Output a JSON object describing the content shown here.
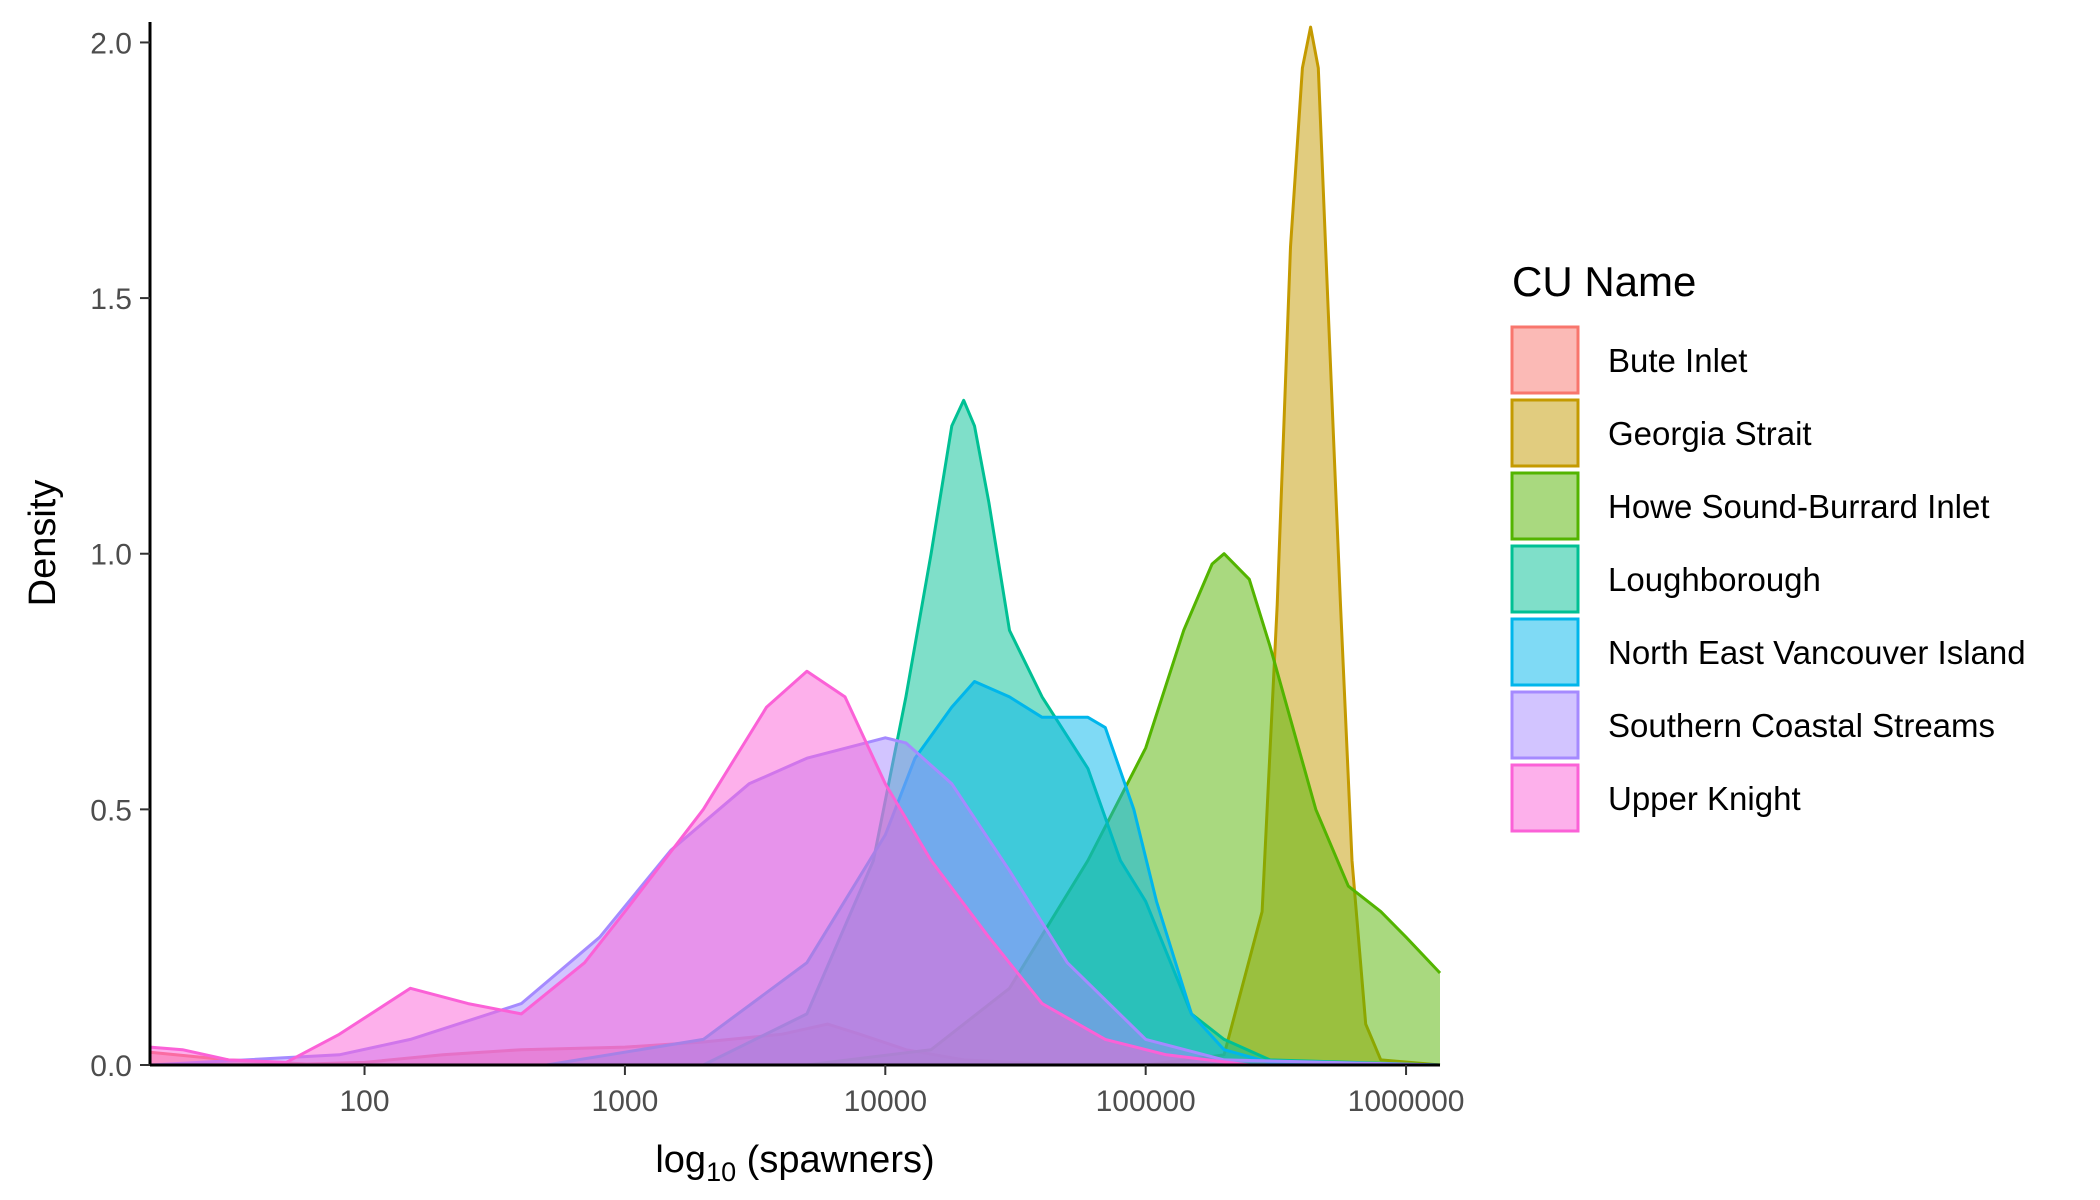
{
  "chart_data": {
    "type": "area",
    "xlabel_main": "log",
    "xlabel_sub": "10",
    "xlabel_rest": " (spawners)",
    "ylabel": "Density",
    "x_scale": "log10",
    "xlim": [
      15,
      1350000
    ],
    "ylim": [
      0,
      2.04
    ],
    "x_ticks": [
      100,
      1000,
      10000,
      100000,
      1000000
    ],
    "x_tick_labels": [
      "100",
      "1000",
      "10000",
      "100000",
      "1000000"
    ],
    "y_ticks": [
      0,
      0.5,
      1,
      1.5,
      2
    ],
    "y_tick_labels": [
      "0.0",
      "0.5",
      "1.0",
      "1.5",
      "2.0"
    ],
    "grid": false,
    "legend": {
      "title": "CU Name",
      "position": "right"
    },
    "fill_opacity": 0.5,
    "series": [
      {
        "name": "Bute Inlet",
        "color": "#F8766D",
        "points": [
          [
            15,
            0.025
          ],
          [
            30,
            0.01
          ],
          [
            60,
            0.002
          ],
          [
            100,
            0.005
          ],
          [
            200,
            0.02
          ],
          [
            400,
            0.03
          ],
          [
            1000,
            0.035
          ],
          [
            2000,
            0.045
          ],
          [
            4000,
            0.06
          ],
          [
            6000,
            0.08
          ],
          [
            8000,
            0.06
          ],
          [
            12000,
            0.03
          ],
          [
            20000,
            0.01
          ],
          [
            50000,
            0.0
          ],
          [
            1350000,
            0.0
          ]
        ]
      },
      {
        "name": "Georgia Strait",
        "color": "#C49A00",
        "points": [
          [
            15,
            0
          ],
          [
            100000,
            0
          ],
          [
            200000,
            0.02
          ],
          [
            280000,
            0.3
          ],
          [
            320000,
            0.9
          ],
          [
            360000,
            1.6
          ],
          [
            400000,
            1.95
          ],
          [
            430000,
            2.03
          ],
          [
            460000,
            1.95
          ],
          [
            500000,
            1.5
          ],
          [
            560000,
            0.9
          ],
          [
            620000,
            0.4
          ],
          [
            700000,
            0.08
          ],
          [
            800000,
            0.01
          ],
          [
            1350000,
            0
          ]
        ]
      },
      {
        "name": "Howe Sound-Burrard Inlet",
        "color": "#53B400",
        "points": [
          [
            15,
            0
          ],
          [
            5000,
            0
          ],
          [
            15000,
            0.03
          ],
          [
            30000,
            0.15
          ],
          [
            60000,
            0.4
          ],
          [
            100000,
            0.62
          ],
          [
            140000,
            0.85
          ],
          [
            180000,
            0.98
          ],
          [
            200000,
            1.0
          ],
          [
            250000,
            0.95
          ],
          [
            300000,
            0.82
          ],
          [
            450000,
            0.5
          ],
          [
            600000,
            0.35
          ],
          [
            800000,
            0.3
          ],
          [
            1000000,
            0.25
          ],
          [
            1350000,
            0.18
          ]
        ]
      },
      {
        "name": "Loughborough",
        "color": "#00C094",
        "points": [
          [
            15,
            0
          ],
          [
            2000,
            0
          ],
          [
            5000,
            0.1
          ],
          [
            9000,
            0.4
          ],
          [
            12000,
            0.72
          ],
          [
            15000,
            1.0
          ],
          [
            18000,
            1.25
          ],
          [
            20000,
            1.3
          ],
          [
            22000,
            1.25
          ],
          [
            25000,
            1.1
          ],
          [
            30000,
            0.85
          ],
          [
            40000,
            0.72
          ],
          [
            60000,
            0.58
          ],
          [
            80000,
            0.4
          ],
          [
            100000,
            0.32
          ],
          [
            150000,
            0.1
          ],
          [
            200000,
            0.05
          ],
          [
            300000,
            0.01
          ],
          [
            1350000,
            0
          ]
        ]
      },
      {
        "name": "North East Vancouver Island",
        "color": "#00B6EB",
        "points": [
          [
            15,
            0
          ],
          [
            500,
            0
          ],
          [
            2000,
            0.05
          ],
          [
            5000,
            0.2
          ],
          [
            10000,
            0.45
          ],
          [
            13000,
            0.6
          ],
          [
            18000,
            0.7
          ],
          [
            22000,
            0.75
          ],
          [
            30000,
            0.72
          ],
          [
            40000,
            0.68
          ],
          [
            60000,
            0.68
          ],
          [
            70000,
            0.66
          ],
          [
            90000,
            0.5
          ],
          [
            110000,
            0.32
          ],
          [
            150000,
            0.1
          ],
          [
            200000,
            0.03
          ],
          [
            300000,
            0.005
          ],
          [
            1350000,
            0
          ]
        ]
      },
      {
        "name": "Southern Coastal Streams",
        "color": "#A58AFF",
        "points": [
          [
            15,
            0
          ],
          [
            80,
            0.02
          ],
          [
            150,
            0.05
          ],
          [
            400,
            0.12
          ],
          [
            800,
            0.25
          ],
          [
            1500,
            0.42
          ],
          [
            3000,
            0.55
          ],
          [
            5000,
            0.6
          ],
          [
            10000,
            0.64
          ],
          [
            12000,
            0.63
          ],
          [
            18000,
            0.55
          ],
          [
            30000,
            0.38
          ],
          [
            50000,
            0.2
          ],
          [
            100000,
            0.05
          ],
          [
            200000,
            0.01
          ],
          [
            1350000,
            0
          ]
        ]
      },
      {
        "name": "Upper Knight",
        "color": "#FB61D7",
        "points": [
          [
            15,
            0.035
          ],
          [
            20,
            0.03
          ],
          [
            30,
            0.01
          ],
          [
            50,
            0.005
          ],
          [
            80,
            0.06
          ],
          [
            150,
            0.15
          ],
          [
            250,
            0.12
          ],
          [
            400,
            0.1
          ],
          [
            700,
            0.2
          ],
          [
            1000,
            0.3
          ],
          [
            2000,
            0.5
          ],
          [
            3500,
            0.7
          ],
          [
            5000,
            0.77
          ],
          [
            7000,
            0.72
          ],
          [
            10000,
            0.55
          ],
          [
            15000,
            0.4
          ],
          [
            25000,
            0.25
          ],
          [
            40000,
            0.12
          ],
          [
            70000,
            0.05
          ],
          [
            120000,
            0.02
          ],
          [
            250000,
            0.0
          ],
          [
            1350000,
            0
          ]
        ]
      }
    ]
  }
}
